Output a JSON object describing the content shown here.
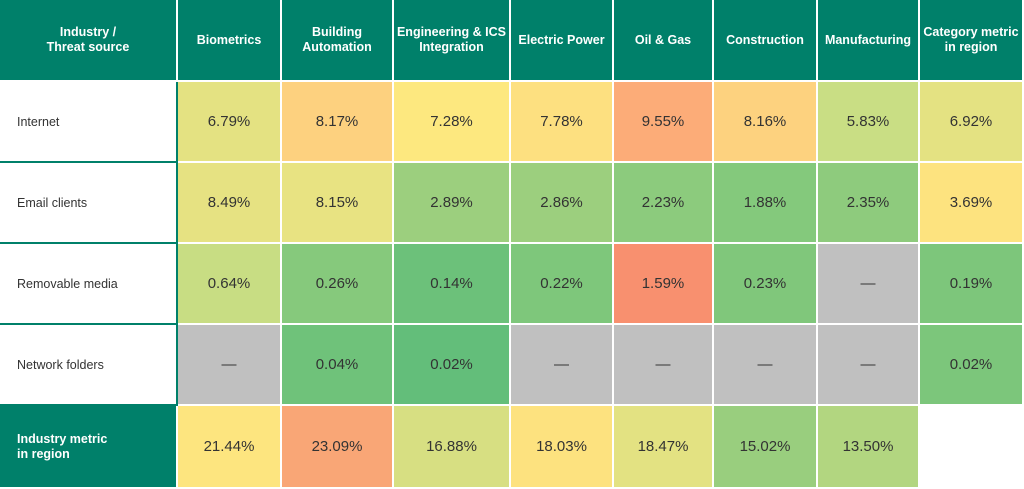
{
  "table": {
    "header": [
      "Industry /\nThreat source",
      "Biometrics",
      "Building\nAutomation",
      "Engineering & ICS\nIntegration",
      "Electric Power",
      "Oil & Gas",
      "Construction",
      "Manufacturing",
      "Category metric\nin region"
    ],
    "rows": [
      {
        "label": "Internet",
        "cells": [
          "6.79%",
          "8.17%",
          "7.28%",
          "7.78%",
          "9.55%",
          "8.16%",
          "5.83%",
          "6.92%"
        ],
        "colors": [
          "#e4e282",
          "#fdd17f",
          "#fde87f",
          "#fde080",
          "#fcac78",
          "#fdd27f",
          "#c9de84",
          "#e4e282"
        ]
      },
      {
        "label": "Email clients",
        "cells": [
          "8.49%",
          "8.15%",
          "2.89%",
          "2.86%",
          "2.23%",
          "1.88%",
          "2.35%",
          "3.69%"
        ],
        "colors": [
          "#e6e282",
          "#e8e382",
          "#9ccf7e",
          "#9ccf7e",
          "#8ccb7d",
          "#84c97c",
          "#8ecb7d",
          "#fde37f"
        ]
      },
      {
        "label": "Removable media",
        "cells": [
          "0.64%",
          "0.26%",
          "0.14%",
          "0.22%",
          "1.59%",
          "0.23%",
          "—",
          "0.19%"
        ],
        "colors": [
          "#c8dd83",
          "#86c97c",
          "#6cc17a",
          "#7ec77b",
          "#f8906f",
          "#80c77b",
          "#c0c0c0",
          "#7dc67b"
        ]
      },
      {
        "label": "Network folders",
        "cells": [
          "—",
          "0.04%",
          "0.02%",
          "—",
          "—",
          "—",
          "—",
          "0.02%"
        ],
        "colors": [
          "#c0c0c0",
          "#6fc27a",
          "#63be7a",
          "#c0c0c0",
          "#c0c0c0",
          "#c0c0c0",
          "#c0c0c0",
          "#7cc67b"
        ]
      }
    ],
    "footer": {
      "label": "Industry metric\nin region",
      "cells": [
        "21.44%",
        "23.09%",
        "16.88%",
        "18.03%",
        "18.47%",
        "15.02%",
        "13.50%"
      ],
      "colors": [
        "#fde57f",
        "#f9a676",
        "#d7df82",
        "#fde27f",
        "#e3e282",
        "#99ce7e",
        "#b2d680"
      ]
    }
  }
}
